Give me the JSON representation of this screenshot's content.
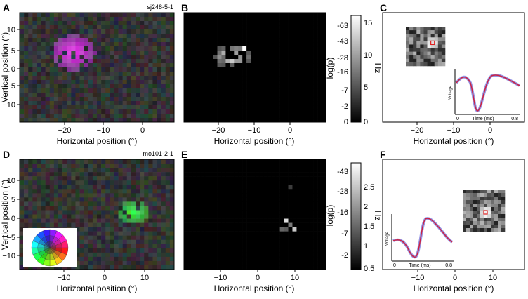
{
  "panels": {
    "A": {
      "letter": "A",
      "tag": "sj248-5-1",
      "xlabel": "Horizontal position (°)",
      "ylabel": "Vertical position (°)",
      "xticks": [
        "−20",
        "−10",
        "0"
      ],
      "yticks": [
        "10",
        "5",
        "0",
        "−5",
        "−10"
      ]
    },
    "B": {
      "letter": "B",
      "xlabel": "Horizontal position (°)",
      "xticks": [
        "−20",
        "−10",
        "0"
      ],
      "colorbar": {
        "left_label": "log(p)",
        "right_label": "Hz",
        "left_ticks": [
          "-63",
          "-43",
          "-28",
          "-16",
          "-7",
          "-2",
          "0"
        ],
        "right_ticks": [
          "15",
          "10",
          "5",
          "0"
        ]
      }
    },
    "C": {
      "letter": "C",
      "xlabel": "Horizontal position (°)",
      "xticks": [
        "−20",
        "−10",
        "0"
      ],
      "inset": {
        "ylabel": "Voltage",
        "xlabel": "Time (ms)",
        "x0": "0",
        "x1": "0.8"
      }
    },
    "D": {
      "letter": "D",
      "tag": "mo101-2-1",
      "xlabel": "Horizontal position (°)",
      "ylabel": "Vertical position (°)",
      "xticks": [
        "−10",
        "0",
        "10"
      ],
      "yticks": [
        "10",
        "5",
        "0",
        "−5",
        "−10"
      ]
    },
    "E": {
      "letter": "E",
      "xlabel": "Horizontal position (°)",
      "xticks": [
        "−10",
        "0",
        "10"
      ],
      "colorbar": {
        "left_label": "log(p)",
        "right_label": "Hz",
        "left_ticks": [
          "-43",
          "-28",
          "-16",
          "-7",
          "-2"
        ],
        "right_ticks": [
          "2.5",
          "2",
          "1.5",
          "1",
          "0.5"
        ]
      }
    },
    "F": {
      "letter": "F",
      "xlabel": "Horizontal position (°)",
      "xticks": [
        "−10",
        "0",
        "10"
      ],
      "inset": {
        "ylabel": "Voltage",
        "xlabel": "Time (ms)",
        "x0": "0",
        "x1": "0.8"
      }
    }
  },
  "colors": {
    "waveform_mean": "#cc2244",
    "waveform_band": "#6a6ad8",
    "map_bg": "#101010",
    "green_rf": "#3adf3a",
    "magenta_rf": "#c040c0"
  }
}
